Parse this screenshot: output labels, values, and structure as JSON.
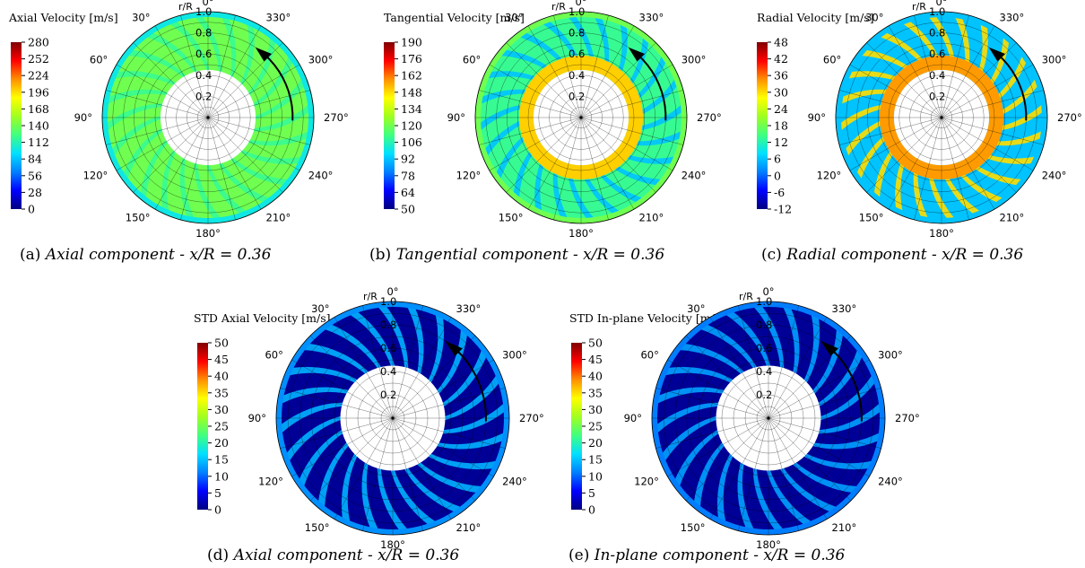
{
  "colorscale": [
    "#000080",
    "#0000ff",
    "#0080ff",
    "#00e0ff",
    "#40ff80",
    "#a0ff20",
    "#ffff00",
    "#ff9000",
    "#ff0000",
    "#800000"
  ],
  "chart_data": [
    {
      "type": "heatmap",
      "panel_label": "(a)",
      "caption": "Axial component - x/R = 0.36",
      "title": "Axial Velocity [m/s]",
      "colorbar_ticks": [
        "280",
        "252",
        "224",
        "196",
        "168",
        "140",
        "112",
        "84",
        "56",
        "28",
        "0"
      ],
      "range": [
        0,
        280
      ],
      "radial_axis_label": "r/R",
      "radial_ticks": [
        "0.2",
        "0.4",
        "0.6",
        "0.8",
        "1.0"
      ],
      "angle_ticks": [
        "0°",
        "30°",
        "60°",
        "90°",
        "120°",
        "150°",
        "180°",
        "210°",
        "240°",
        "270°",
        "300°",
        "330°"
      ],
      "hub_radius": 0.45,
      "blades": 24,
      "rotation_arrow": true,
      "background_value": 140,
      "blade_value": 120,
      "rim_value": 100
    },
    {
      "type": "heatmap",
      "panel_label": "(b)",
      "caption": "Tangential component - x/R = 0.36",
      "title": "Tangential Velocity [m/s]",
      "colorbar_ticks": [
        "190",
        "176",
        "162",
        "148",
        "134",
        "120",
        "106",
        "92",
        "78",
        "64",
        "50"
      ],
      "range": [
        50,
        190
      ],
      "radial_axis_label": "r/R",
      "radial_ticks": [
        "0.2",
        "0.4",
        "0.6",
        "0.8",
        "1.0"
      ],
      "angle_ticks": [
        "0°",
        "30°",
        "60°",
        "90°",
        "120°",
        "150°",
        "180°",
        "210°",
        "240°",
        "270°",
        "300°",
        "330°"
      ],
      "hub_radius": 0.45,
      "blades": 24,
      "rotation_arrow": true,
      "background_value": 110,
      "blade_value": 92,
      "rim_value": 120,
      "hub_ring_value": 150
    },
    {
      "type": "heatmap",
      "panel_label": "(c)",
      "caption": "Radial component - x/R = 0.36",
      "title": "Radial Velocity [m/s]",
      "colorbar_ticks": [
        "48",
        "42",
        "36",
        "30",
        "24",
        "18",
        "12",
        "6",
        "0",
        "-6",
        "-12"
      ],
      "range": [
        -12,
        48
      ],
      "radial_axis_label": "r/R",
      "radial_ticks": [
        "0.2",
        "0.4",
        "0.6",
        "0.8",
        "1.0"
      ],
      "angle_ticks": [
        "0°",
        "30°",
        "60°",
        "90°",
        "120°",
        "150°",
        "180°",
        "210°",
        "240°",
        "270°",
        "300°",
        "330°"
      ],
      "hub_radius": 0.45,
      "blades": 24,
      "rotation_arrow": true,
      "background_value": 6,
      "blade_value": 30,
      "rim_value": 6,
      "hub_ring_value": 34
    },
    {
      "type": "heatmap",
      "panel_label": "(d)",
      "caption": "Axial component - x/R = 0.36",
      "title": "STD Axial Velocity [m/s]",
      "colorbar_ticks": [
        "50",
        "45",
        "40",
        "35",
        "30",
        "25",
        "20",
        "15",
        "10",
        "5",
        "0"
      ],
      "range": [
        0,
        50
      ],
      "radial_axis_label": "r/R",
      "radial_ticks": [
        "0.2",
        "0.4",
        "0.6",
        "0.8",
        "1.0"
      ],
      "angle_ticks": [
        "0°",
        "30°",
        "60°",
        "90°",
        "120°",
        "150°",
        "180°",
        "210°",
        "240°",
        "270°",
        "300°",
        "330°"
      ],
      "hub_radius": 0.45,
      "blades": 24,
      "rotation_arrow": true,
      "background_value": 1,
      "blade_value": 14,
      "rim_value": 12
    },
    {
      "type": "heatmap",
      "panel_label": "(e)",
      "caption": "In-plane component - x/R = 0.36",
      "title": "STD In-plane Velocity [m/s]",
      "colorbar_ticks": [
        "50",
        "45",
        "40",
        "35",
        "30",
        "25",
        "20",
        "15",
        "10",
        "5",
        "0"
      ],
      "range": [
        0,
        50
      ],
      "radial_axis_label": "r/R",
      "radial_ticks": [
        "0.2",
        "0.4",
        "0.6",
        "0.8",
        "1.0"
      ],
      "angle_ticks": [
        "0°",
        "30°",
        "60°",
        "90°",
        "120°",
        "150°",
        "180°",
        "210°",
        "240°",
        "270°",
        "300°",
        "330°"
      ],
      "hub_radius": 0.45,
      "blades": 24,
      "rotation_arrow": true,
      "background_value": 1,
      "blade_value": 13,
      "rim_value": 11
    }
  ]
}
